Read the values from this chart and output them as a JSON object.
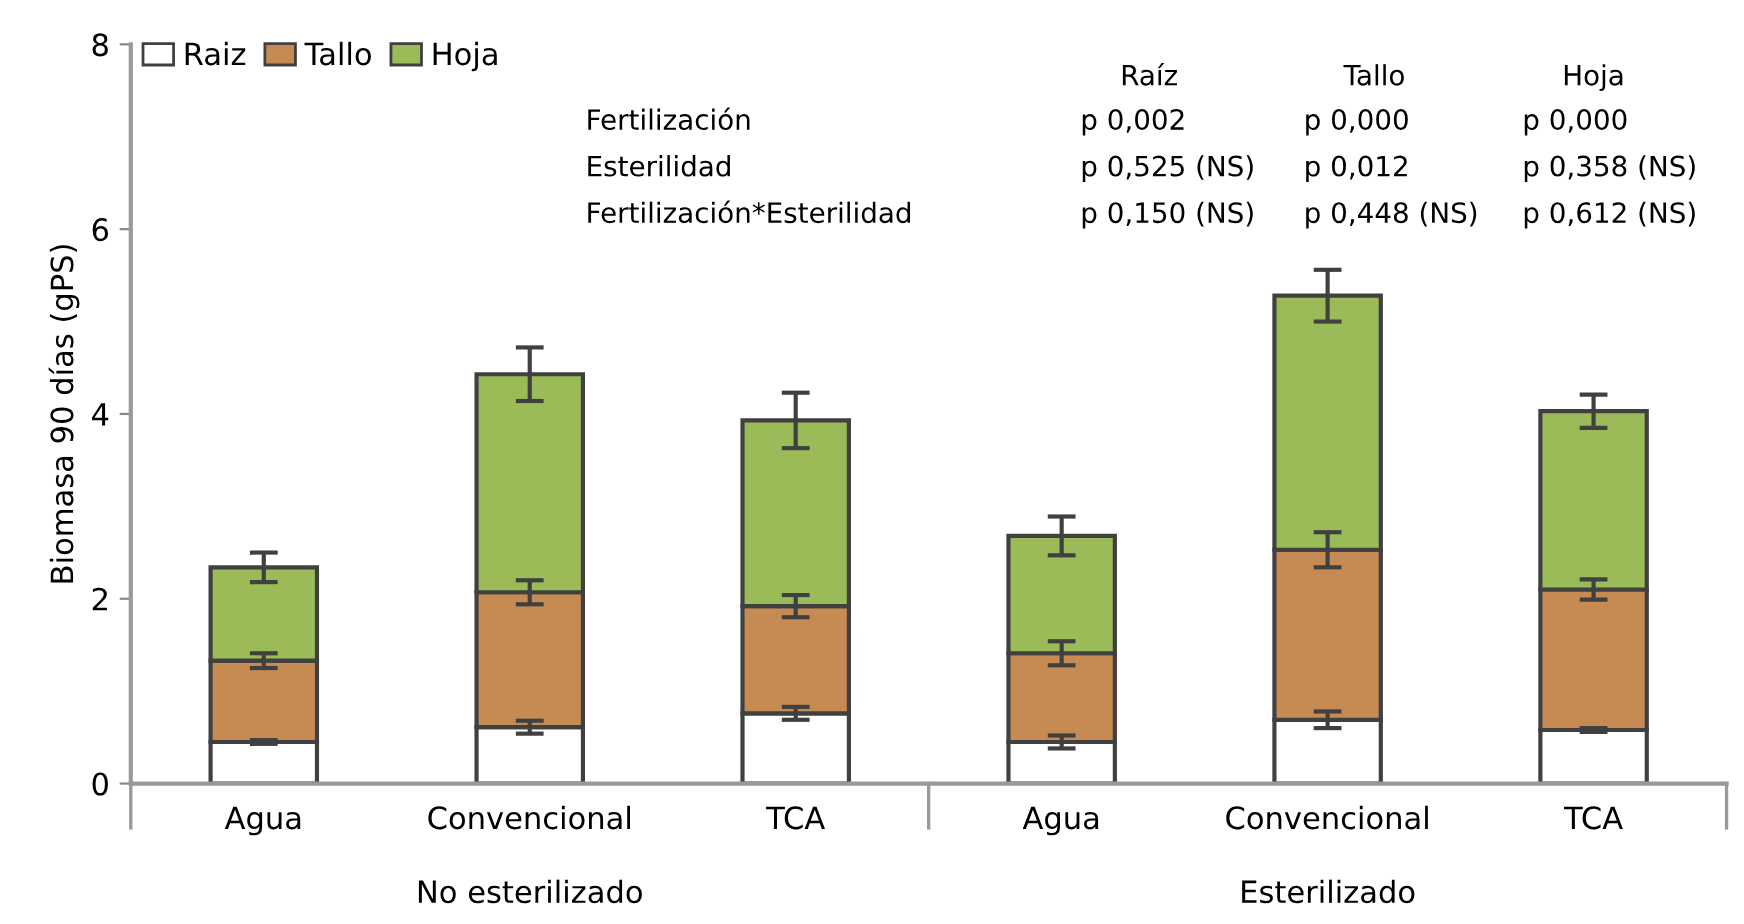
{
  "chart_data": {
    "type": "bar",
    "stacked": true,
    "ylabel": "Biomasa 90 días (gPS)",
    "categories": [
      "Agua",
      "Convencional",
      "TCA",
      "Agua",
      "Convencional",
      "TCA"
    ],
    "series": [
      {
        "name": "Raiz",
        "color": "#ffffff",
        "values": [
          0.45,
          0.61,
          0.76,
          0.45,
          0.69,
          0.58
        ],
        "errors": [
          0.02,
          0.07,
          0.07,
          0.07,
          0.09,
          0.02
        ]
      },
      {
        "name": "Tallo",
        "color": "#c68b53",
        "values": [
          0.88,
          1.46,
          1.16,
          0.96,
          1.84,
          1.52
        ],
        "errors": [
          0.08,
          0.13,
          0.12,
          0.13,
          0.19,
          0.11
        ]
      },
      {
        "name": "Hoja",
        "color": "#9bbb59",
        "values": [
          1.01,
          2.36,
          2.01,
          1.27,
          2.75,
          1.93
        ],
        "errors": [
          0.16,
          0.29,
          0.3,
          0.21,
          0.28,
          0.18
        ]
      }
    ],
    "ylim": [
      0,
      8
    ],
    "yticks": [
      0,
      2,
      4,
      6,
      8
    ],
    "grid": false,
    "legend": "top left",
    "annotations": [
      "No esterilizado",
      "Esterilizado",
      "Raíz",
      "Tallo",
      "Hoja",
      "Fertilización",
      "p 0,002",
      "p 0,000",
      "p 0,000",
      "Esterilidad",
      "p 0,525 (NS)",
      "p 0,012",
      "p 0,358 (NS)",
      "Fertilización*Esterilidad",
      "p 0,150 (NS)",
      "p 0,448 (NS)",
      "p 0,612 (NS)"
    ]
  }
}
